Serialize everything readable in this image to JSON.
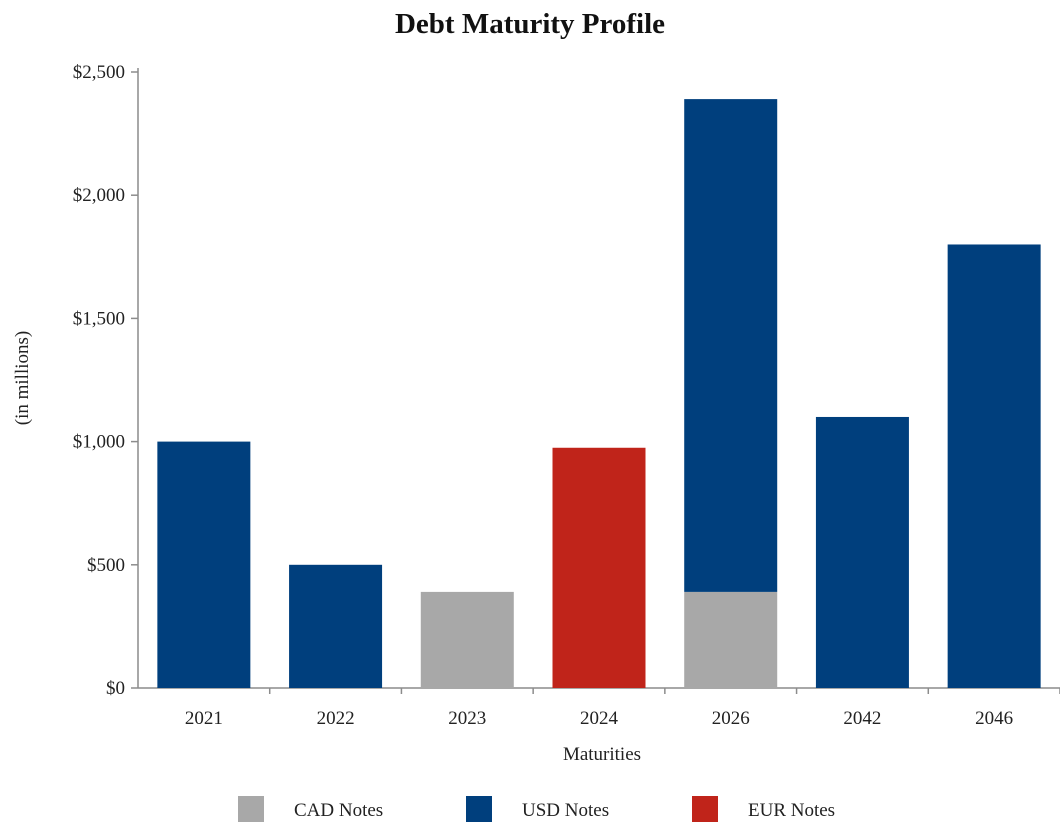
{
  "chart_data": {
    "type": "bar",
    "stacked": true,
    "title": "Debt Maturity Profile",
    "xlabel": "Maturities",
    "ylabel": "(in millions)",
    "ylim": [
      0,
      2500
    ],
    "yticks": [
      0,
      500,
      1000,
      1500,
      2000,
      2500
    ],
    "ytick_labels": [
      "$0",
      "$500",
      "$1,000",
      "$1,500",
      "$2,000",
      "$2,500"
    ],
    "categories": [
      "2021",
      "2022",
      "2023",
      "2024",
      "2026",
      "2042",
      "2046"
    ],
    "series": [
      {
        "name": "CAD Notes",
        "color": "#a8a8a8",
        "values": [
          0,
          0,
          390,
          0,
          390,
          0,
          0
        ]
      },
      {
        "name": "USD Notes",
        "color": "#003f7d",
        "values": [
          1000,
          500,
          0,
          0,
          2000,
          1100,
          1800
        ]
      },
      {
        "name": "EUR Notes",
        "color": "#c0241a",
        "values": [
          0,
          0,
          0,
          975,
          0,
          0,
          0
        ]
      }
    ],
    "grid": false,
    "legend_position": "bottom"
  }
}
